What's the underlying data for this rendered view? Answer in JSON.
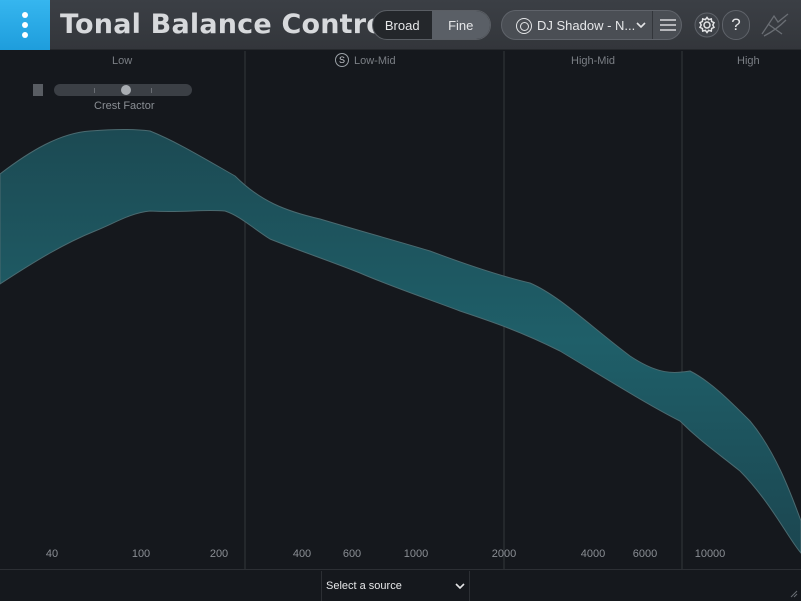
{
  "header": {
    "title": "Tonal Balance Control",
    "view_modes": [
      {
        "label": "Broad",
        "active": false
      },
      {
        "label": "Fine",
        "active": true
      }
    ],
    "target": {
      "name": "DJ Shadow - N...",
      "icon": "target-icon"
    },
    "help_label": "?"
  },
  "plot": {
    "bands": [
      {
        "label": "Low"
      },
      {
        "label": "Low-Mid",
        "solo_label": "S"
      },
      {
        "label": "High-Mid"
      },
      {
        "label": "High"
      }
    ],
    "crest_factor_label": "Crest Factor",
    "freq_ticks": [
      "40",
      "100",
      "200",
      "400",
      "600",
      "1000",
      "2000",
      "4000",
      "6000",
      "10000"
    ],
    "accent_color": "#1f5a64"
  },
  "footer": {
    "source_placeholder": "Select a source"
  }
}
